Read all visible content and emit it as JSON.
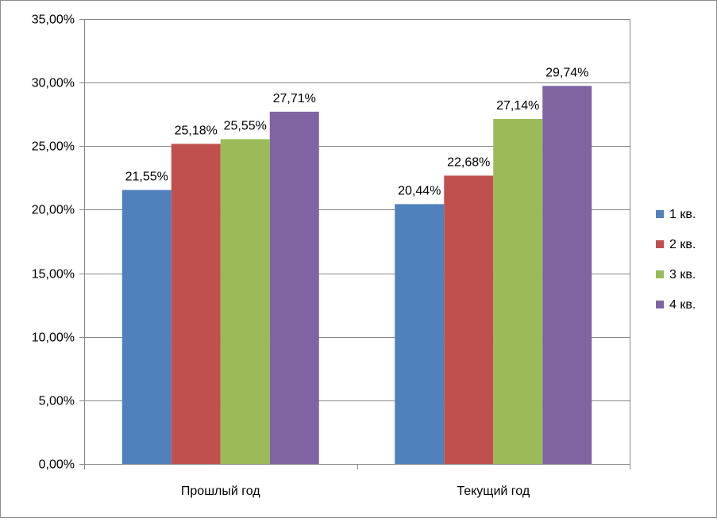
{
  "chart_data": {
    "type": "bar",
    "categories": [
      "Прошлый год",
      "Текущий год"
    ],
    "series": [
      {
        "name": "1 кв.",
        "color": "#4F81BD",
        "values": [
          21.55,
          20.44
        ],
        "labels": [
          "21,55%",
          "20,44%"
        ]
      },
      {
        "name": "2 кв.",
        "color": "#C0504D",
        "values": [
          25.18,
          22.68
        ],
        "labels": [
          "25,18%",
          "22,68%"
        ]
      },
      {
        "name": "3 кв.",
        "color": "#9BBB59",
        "values": [
          25.55,
          27.14
        ],
        "labels": [
          "25,55%",
          "27,14%"
        ]
      },
      {
        "name": "4 кв.",
        "color": "#8064A2",
        "values": [
          27.71,
          29.74
        ],
        "labels": [
          "27,71%",
          "29,74%"
        ]
      }
    ],
    "ylim": [
      0,
      35
    ],
    "yticks": [
      0,
      5,
      10,
      15,
      20,
      25,
      30,
      35
    ],
    "ytick_labels": [
      "0,00%",
      "5,00%",
      "10,00%",
      "15,00%",
      "20,00%",
      "25,00%",
      "30,00%",
      "35,00%"
    ],
    "grid": true,
    "legend_position": "right",
    "title": "",
    "xlabel": "",
    "ylabel": ""
  }
}
